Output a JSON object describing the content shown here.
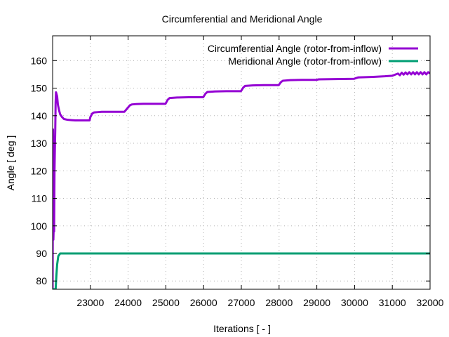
{
  "chart_data": {
    "type": "line",
    "title": "Circumferential and Meridional Angle",
    "xlabel": "Iterations [ - ]",
    "ylabel": "Angle [ deg ]",
    "xlim": [
      22000,
      32000
    ],
    "ylim": [
      77,
      169
    ],
    "xticks": [
      23000,
      24000,
      25000,
      26000,
      27000,
      28000,
      29000,
      30000,
      31000,
      32000
    ],
    "yticks": [
      80,
      90,
      100,
      110,
      120,
      130,
      140,
      150,
      160
    ],
    "grid": true,
    "legend_position": "top-right",
    "series": [
      {
        "name": "Circumferential Angle (rotor-from-inflow)",
        "color": "#9400d3",
        "x": [
          22000,
          22010,
          22020,
          22030,
          22040,
          22050,
          22060,
          22070,
          22080,
          22090,
          22100,
          22120,
          22140,
          22170,
          22200,
          22250,
          22300,
          22400,
          22500,
          22600,
          22700,
          22800,
          22900,
          22980,
          23000,
          23050,
          23100,
          23200,
          23300,
          23500,
          23700,
          23900,
          24000,
          24050,
          24100,
          24200,
          24400,
          24700,
          24990,
          25050,
          25100,
          25300,
          25600,
          25990,
          26050,
          26100,
          26300,
          26600,
          26990,
          27050,
          27100,
          27300,
          27600,
          27990,
          28050,
          28100,
          28300,
          28600,
          28990,
          29050,
          29500,
          29990,
          30050,
          30100,
          30500,
          30800,
          31000,
          31150,
          31200,
          31250,
          31300,
          31350,
          31400,
          31450,
          31500,
          31550,
          31600,
          31650,
          31700,
          31750,
          31800,
          31850,
          31900,
          31950,
          32000
        ],
        "values": [
          77,
          135,
          95,
          100,
          98,
          120,
          128,
          135,
          145,
          148.5,
          148,
          147,
          144,
          142,
          140.5,
          139.5,
          138.8,
          138.5,
          138.4,
          138.3,
          138.3,
          138.3,
          138.3,
          138.3,
          139.5,
          140.8,
          141.2,
          141.3,
          141.4,
          141.4,
          141.4,
          141.4,
          143,
          143.8,
          144.1,
          144.2,
          144.3,
          144.3,
          144.3,
          145.8,
          146.4,
          146.6,
          146.7,
          146.7,
          148,
          148.6,
          148.8,
          148.9,
          148.9,
          150.2,
          150.8,
          151,
          151.1,
          151.1,
          152.2,
          152.7,
          152.9,
          153,
          153,
          153.2,
          153.3,
          153.4,
          153.7,
          153.9,
          154.1,
          154.3,
          154.5,
          155.3,
          154.7,
          155.6,
          154.9,
          155.7,
          155,
          155.8,
          155,
          155.8,
          155,
          155.8,
          155,
          155.8,
          155,
          155.8,
          155,
          155.8,
          155.4
        ]
      },
      {
        "name": "Meridional Angle (rotor-from-inflow)",
        "color": "#009e73",
        "x": [
          22000,
          22050,
          22080,
          22100,
          22120,
          22150,
          22200,
          22300,
          23000,
          25000,
          27000,
          29000,
          31000,
          32000
        ],
        "values": [
          77,
          77,
          77,
          82,
          86,
          89,
          90,
          90,
          90,
          90,
          90,
          90,
          90,
          90
        ]
      }
    ]
  }
}
